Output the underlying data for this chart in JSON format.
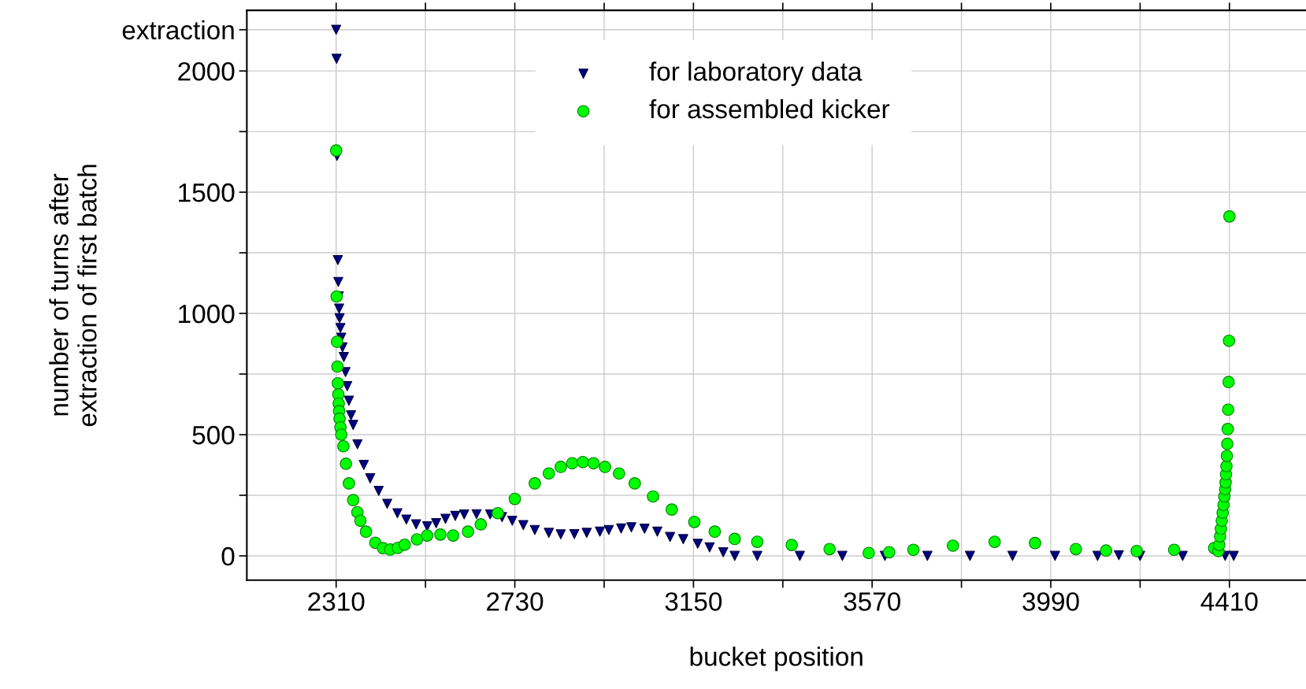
{
  "chart_data": {
    "type": "scatter",
    "xlabel": "bucket position",
    "ylabel": "number of turns after\nextraction of first batch",
    "xlim": [
      2100,
      4590
    ],
    "ylim": [
      -100,
      2250
    ],
    "xticks": [
      2310,
      {
        "value": 2520,
        "label": null
      },
      2730,
      {
        "value": 2940,
        "label": null
      },
      3150,
      {
        "value": 3360,
        "label": null
      },
      3570,
      {
        "value": 3780,
        "label": null
      },
      3990,
      {
        "value": 4200,
        "label": null
      },
      4410
    ],
    "yticks": [
      0,
      {
        "value": 250,
        "label": null
      },
      500,
      {
        "value": 750,
        "label": null
      },
      1000,
      {
        "value": 1250,
        "label": null
      },
      1500,
      {
        "value": 1750,
        "label": null
      },
      2000,
      {
        "value": 2170,
        "label": "extraction"
      }
    ],
    "grid": true,
    "legend": "top",
    "series": [
      {
        "name": "for laboratory data",
        "color": "#000080",
        "marker": "triangle",
        "x": [
          2310,
          2311,
          2312,
          2314,
          2315,
          2316,
          2317,
          2318,
          2320,
          2322,
          2325,
          2328,
          2332,
          2336,
          2340,
          2345,
          2350,
          2360,
          2375,
          2390,
          2410,
          2430,
          2454,
          2475,
          2498,
          2524,
          2545,
          2567,
          2590,
          2611,
          2640,
          2672,
          2700,
          2724,
          2750,
          2777,
          2810,
          2838,
          2870,
          2899,
          2930,
          2951,
          2980,
          3004,
          3035,
          3065,
          3095,
          3126,
          3160,
          3188,
          3220,
          3247,
          3300,
          3400,
          3500,
          3600,
          3700,
          3800,
          3900,
          4000,
          4100,
          4150,
          4200,
          4300,
          4400,
          4420
        ],
        "values": [
          2170,
          2050,
          1650,
          1220,
          1130,
          1070,
          1020,
          980,
          940,
          900,
          860,
          820,
          758,
          700,
          640,
          580,
          540,
          460,
          375,
          320,
          268,
          215,
          176,
          150,
          130,
          122,
          135,
          153,
          165,
          171,
          172,
          171,
          160,
          145,
          127,
          107,
          95,
          89,
          90,
          95,
          100,
          107,
          113,
          118,
          112,
          100,
          78,
          69,
          50,
          35,
          15,
          0,
          0,
          0,
          0,
          0,
          0,
          0,
          0,
          0,
          0,
          3,
          0,
          0,
          0,
          0
        ]
      },
      {
        "name": "for assembled kicker",
        "color": "#00ff00",
        "marker": "circle",
        "x": [
          2310,
          2311,
          2312,
          2313,
          2314,
          2315,
          2316,
          2317,
          2318,
          2320,
          2322,
          2327,
          2333,
          2340,
          2350,
          2360,
          2367,
          2380,
          2402,
          2420,
          2437,
          2455,
          2471,
          2500,
          2524,
          2555,
          2585,
          2620,
          2650,
          2690,
          2730,
          2777,
          2810,
          2838,
          2865,
          2890,
          2915,
          2942,
          2975,
          3012,
          3055,
          3099,
          3152,
          3200,
          3247,
          3300,
          3381,
          3470,
          3562,
          3610,
          3667,
          3760,
          3858,
          3953,
          4049,
          4120,
          4192,
          4280,
          4374,
          4384,
          4386,
          4388,
          4390,
          4392,
          4394,
          4396,
          4398,
          4400,
          4401,
          4402,
          4403,
          4404,
          4405,
          4406,
          4407,
          4408,
          4409,
          4410
        ],
        "values": [
          1672,
          1070,
          883,
          781,
          712,
          666,
          628,
          597,
          566,
          530,
          500,
          452,
          380,
          299,
          230,
          180,
          145,
          100,
          54,
          32,
          26,
          33,
          46,
          68,
          84,
          88,
          84,
          100,
          130,
          176,
          235,
          299,
          340,
          367,
          382,
          387,
          382,
          367,
          340,
          299,
          245,
          191,
          140,
          100,
          70,
          58,
          45,
          28,
          12,
          15,
          25,
          42,
          58,
          53,
          28,
          22,
          20,
          25,
          32,
          20,
          45,
          80,
          112,
          145,
          178,
          210,
          245,
          275,
          303,
          337,
          370,
          412,
          462,
          523,
          603,
          717,
          887,
          1400
        ]
      }
    ]
  }
}
